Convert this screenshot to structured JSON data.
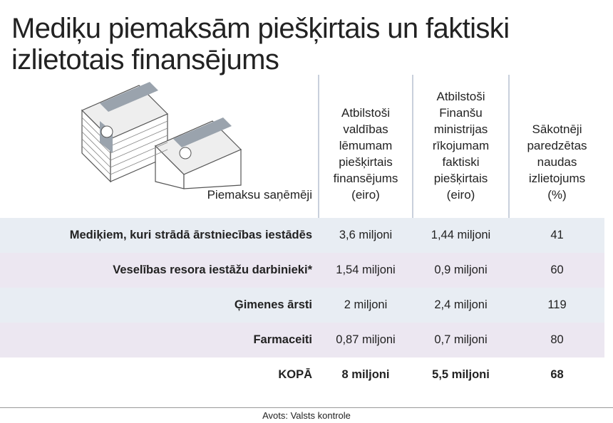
{
  "header": {
    "title_lines": [
      "Mediķu piemaksām piešķirtais un faktiski",
      "izlietotais finansējums"
    ]
  },
  "table": {
    "columns": [
      [
        "Piemaksu saņēmēji"
      ],
      [
        "Atbilstoši",
        "valdības",
        "lēmumam",
        "piešķirtais",
        "finansējums",
        "(eiro)"
      ],
      [
        "Atbilstoši",
        "Finanšu",
        "ministrijas",
        "rīkojumam",
        "faktiski",
        "piešķirtais",
        "(eiro)"
      ],
      [
        "Sākotnēji",
        "paredzētas",
        "naudas",
        "izlietojums",
        "(%)"
      ]
    ],
    "rows": [
      [
        "Mediķiem, kuri strādā ārstniecības iestādēs",
        "3,6 miljoni",
        "1,44 miljoni",
        "41"
      ],
      [
        "Veselības resora iestāžu darbinieki*",
        "1,54 miljoni",
        "0,9 miljoni",
        "60"
      ],
      [
        "Ģimenes ārsti",
        "2 miljoni",
        "2,4 miljoni",
        "119"
      ],
      [
        "Farmaceiti",
        "0,87 miljoni",
        "0,7 miljoni",
        "80"
      ],
      [
        "KOPĀ",
        "8 miljoni",
        "5,5 miljoni",
        "68"
      ]
    ]
  },
  "footer": {
    "source": "Avots: Valsts kontrole"
  }
}
